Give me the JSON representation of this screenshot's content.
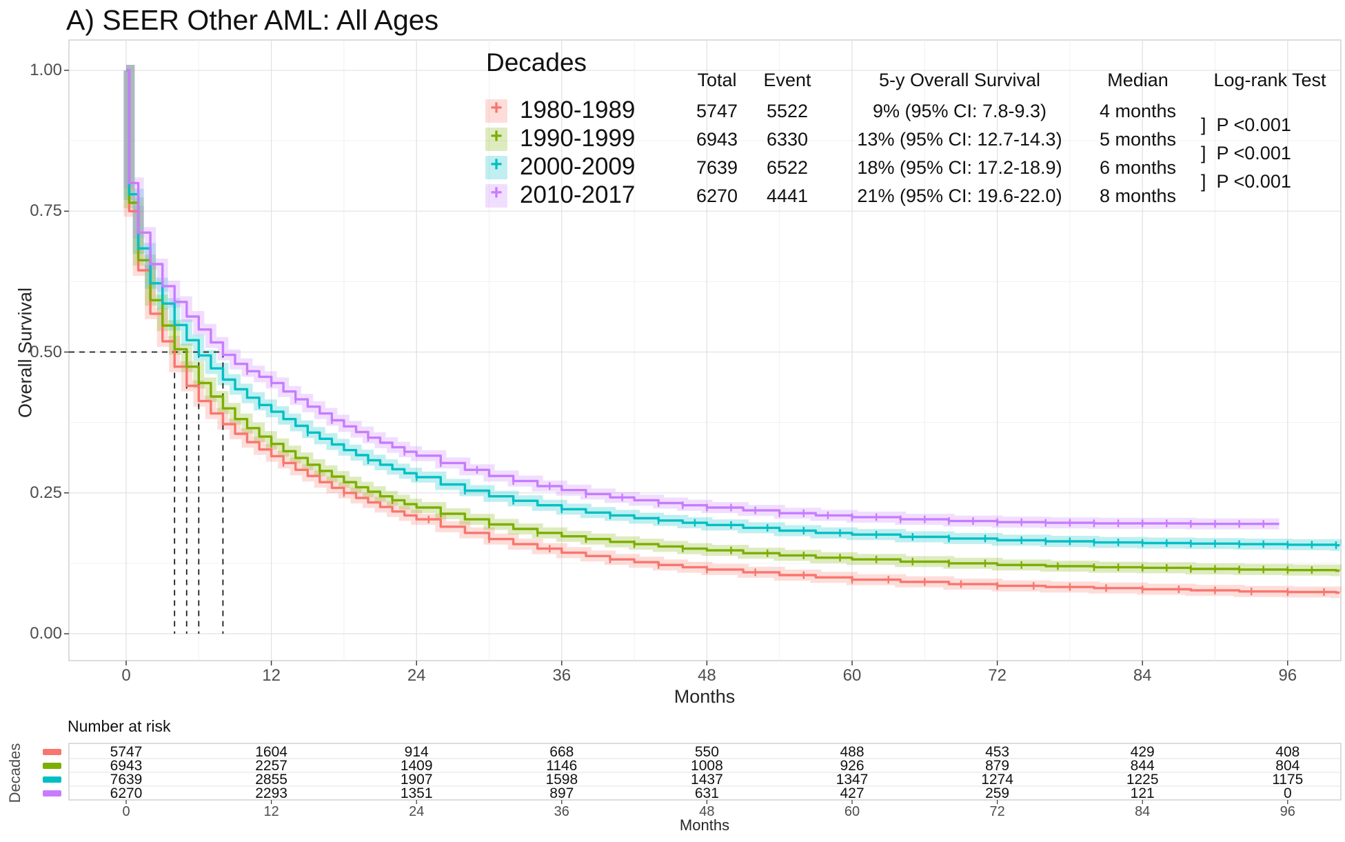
{
  "title": "A) SEER Other AML: All Ages",
  "colors": {
    "red": "#F8766D",
    "green": "#7CAE00",
    "teal": "#00BFC4",
    "purple": "#C77CFF",
    "grid_major": "#e2e2e2",
    "grid_minor": "#f0f0f0",
    "panel_border": "#c9c9c9",
    "tick_text": "#4d4d4d",
    "dashed_guide": "#1a1a1a"
  },
  "legend": {
    "title": "Decades",
    "headers": {
      "total": "Total",
      "event": "Event",
      "os": "5-y Overall Survival",
      "median": "Median",
      "logrank": "Log-rank Test"
    },
    "rows": [
      {
        "label": "1980-1989",
        "color_key": "red",
        "total": "5747",
        "event": "5522",
        "os": "9% (95% CI: 7.8-9.3)",
        "median": "4 months"
      },
      {
        "label": "1990-1999",
        "color_key": "green",
        "total": "6943",
        "event": "6330",
        "os": "13% (95% CI: 12.7-14.3)",
        "median": "5 months"
      },
      {
        "label": "2000-2009",
        "color_key": "teal",
        "total": "7639",
        "event": "6522",
        "os": "18% (95% CI: 17.2-18.9)",
        "median": "6 months"
      },
      {
        "label": "2010-2017",
        "color_key": "purple",
        "total": "6270",
        "event": "4441",
        "os": "21% (95% CI: 19.6-22.0)",
        "median": "8 months"
      }
    ],
    "p_values": [
      "]  P <0.001",
      "]  P <0.001",
      "]  P <0.001"
    ],
    "key_glyph": "+"
  },
  "y_axis": {
    "label": "Overall Survival",
    "ticks": [
      "1.00",
      "0.75",
      "0.50",
      "0.25",
      "0.00"
    ],
    "tick_values": [
      1.0,
      0.75,
      0.5,
      0.25,
      0.0
    ]
  },
  "x_axis": {
    "label": "Months",
    "ticks": [
      "0",
      "12",
      "24",
      "36",
      "48",
      "60",
      "72",
      "84",
      "96"
    ],
    "tick_values": [
      0,
      12,
      24,
      36,
      48,
      60,
      72,
      84,
      96
    ]
  },
  "risk_table": {
    "title": "Number at risk",
    "group_label": "Decades",
    "axis_label": "Months",
    "months": [
      0,
      12,
      24,
      36,
      48,
      60,
      72,
      84,
      96
    ],
    "rows": [
      {
        "name": "1980-1989",
        "color_key": "red",
        "counts": [
          "5747",
          "1604",
          "914",
          "668",
          "550",
          "488",
          "453",
          "429",
          "408"
        ]
      },
      {
        "name": "1990-1999",
        "color_key": "green",
        "counts": [
          "6943",
          "2257",
          "1409",
          "1146",
          "1008",
          "926",
          "879",
          "844",
          "804"
        ]
      },
      {
        "name": "2000-2009",
        "color_key": "teal",
        "counts": [
          "7639",
          "2855",
          "1907",
          "1598",
          "1437",
          "1347",
          "1274",
          "1225",
          "1175"
        ]
      },
      {
        "name": "2010-2017",
        "color_key": "purple",
        "counts": [
          "6270",
          "2293",
          "1351",
          "897",
          "631",
          "427",
          "259",
          "121",
          "0"
        ]
      }
    ]
  },
  "chart_data": {
    "type": "line",
    "subtype": "kaplan-meier-step",
    "title": "A) SEER Other AML: All Ages",
    "xlabel": "Months",
    "ylabel": "Overall Survival",
    "xlim": [
      -4.7,
      102
    ],
    "ylim": [
      0,
      1
    ],
    "x_ticks": [
      0,
      12,
      24,
      36,
      48,
      60,
      72,
      84,
      96
    ],
    "y_ticks": [
      0,
      0.25,
      0.5,
      0.75,
      1.0
    ],
    "grid": true,
    "legend_position": "top-inside",
    "median_guides": {
      "y": 0.5,
      "x_months": [
        4,
        5,
        6,
        8
      ]
    },
    "five_year_os_pct": {
      "1980-1989": 9,
      "1990-1999": 13,
      "2000-2009": 18,
      "2010-2017": 21
    },
    "median_months": {
      "1980-1989": 4,
      "1990-1999": 5,
      "2000-2009": 6,
      "2010-2017": 8
    },
    "series": [
      {
        "name": "1980-1989",
        "color_key": "red",
        "end_month": 100.3,
        "points": [
          [
            0,
            1.0
          ],
          [
            0.25,
            0.75
          ],
          [
            1,
            0.645
          ],
          [
            2,
            0.568
          ],
          [
            3,
            0.519
          ],
          [
            4,
            0.474
          ],
          [
            5,
            0.44
          ],
          [
            6,
            0.413
          ],
          [
            7,
            0.391
          ],
          [
            8,
            0.372
          ],
          [
            9,
            0.355
          ],
          [
            10,
            0.34
          ],
          [
            11,
            0.327
          ],
          [
            12,
            0.315
          ],
          [
            13,
            0.303
          ],
          [
            14,
            0.291
          ],
          [
            15,
            0.28
          ],
          [
            16,
            0.269
          ],
          [
            17,
            0.259
          ],
          [
            18,
            0.25
          ],
          [
            19,
            0.241
          ],
          [
            20,
            0.233
          ],
          [
            21,
            0.225
          ],
          [
            22,
            0.217
          ],
          [
            23,
            0.21
          ],
          [
            24,
            0.203
          ],
          [
            26,
            0.19
          ],
          [
            28,
            0.179
          ],
          [
            30,
            0.168
          ],
          [
            32,
            0.159
          ],
          [
            34,
            0.151
          ],
          [
            36,
            0.144
          ],
          [
            38,
            0.138
          ],
          [
            40,
            0.132
          ],
          [
            42,
            0.127
          ],
          [
            44,
            0.122
          ],
          [
            46,
            0.118
          ],
          [
            48,
            0.114
          ],
          [
            51,
            0.109
          ],
          [
            54,
            0.104
          ],
          [
            57,
            0.1
          ],
          [
            60,
            0.096
          ],
          [
            64,
            0.092
          ],
          [
            68,
            0.088
          ],
          [
            72,
            0.085
          ],
          [
            76,
            0.083
          ],
          [
            80,
            0.081
          ],
          [
            84,
            0.079
          ],
          [
            88,
            0.077
          ],
          [
            92,
            0.075
          ],
          [
            96,
            0.074
          ],
          [
            100,
            0.073
          ]
        ],
        "censor_months": [
          13,
          18,
          25,
          30,
          35,
          40,
          44,
          48,
          52,
          56,
          60,
          63,
          66,
          69,
          72,
          75,
          78,
          81,
          84,
          87,
          90,
          93,
          96,
          99
        ]
      },
      {
        "name": "1990-1999",
        "color_key": "green",
        "end_month": 100.3,
        "points": [
          [
            0,
            1.0
          ],
          [
            0.25,
            0.765
          ],
          [
            1,
            0.663
          ],
          [
            2,
            0.592
          ],
          [
            3,
            0.547
          ],
          [
            4,
            0.505
          ],
          [
            5,
            0.474
          ],
          [
            6,
            0.445
          ],
          [
            7,
            0.421
          ],
          [
            8,
            0.4
          ],
          [
            9,
            0.381
          ],
          [
            10,
            0.365
          ],
          [
            11,
            0.35
          ],
          [
            12,
            0.337
          ],
          [
            13,
            0.324
          ],
          [
            14,
            0.312
          ],
          [
            15,
            0.3
          ],
          [
            16,
            0.289
          ],
          [
            17,
            0.279
          ],
          [
            18,
            0.269
          ],
          [
            19,
            0.26
          ],
          [
            20,
            0.252
          ],
          [
            21,
            0.244
          ],
          [
            22,
            0.237
          ],
          [
            23,
            0.23
          ],
          [
            24,
            0.224
          ],
          [
            26,
            0.213
          ],
          [
            28,
            0.203
          ],
          [
            30,
            0.194
          ],
          [
            32,
            0.186
          ],
          [
            34,
            0.179
          ],
          [
            36,
            0.173
          ],
          [
            38,
            0.168
          ],
          [
            40,
            0.163
          ],
          [
            42,
            0.159
          ],
          [
            44,
            0.155
          ],
          [
            46,
            0.151
          ],
          [
            48,
            0.148
          ],
          [
            51,
            0.143
          ],
          [
            54,
            0.139
          ],
          [
            57,
            0.135
          ],
          [
            60,
            0.132
          ],
          [
            64,
            0.128
          ],
          [
            68,
            0.125
          ],
          [
            72,
            0.122
          ],
          [
            76,
            0.12
          ],
          [
            80,
            0.118
          ],
          [
            84,
            0.117
          ],
          [
            88,
            0.115
          ],
          [
            92,
            0.114
          ],
          [
            96,
            0.113
          ],
          [
            100,
            0.112
          ]
        ],
        "censor_months": [
          12,
          16,
          22,
          26,
          30,
          34,
          38,
          42,
          46,
          50,
          53,
          56,
          59,
          62,
          65,
          68,
          71,
          74,
          77,
          80,
          82,
          84,
          86,
          88,
          90,
          92,
          94,
          96,
          98
        ]
      },
      {
        "name": "2000-2009",
        "color_key": "teal",
        "end_month": 100.3,
        "points": [
          [
            0,
            1.0
          ],
          [
            0.25,
            0.78
          ],
          [
            1,
            0.684
          ],
          [
            2,
            0.622
          ],
          [
            3,
            0.586
          ],
          [
            4,
            0.548
          ],
          [
            5,
            0.521
          ],
          [
            6,
            0.494
          ],
          [
            7,
            0.471
          ],
          [
            8,
            0.451
          ],
          [
            9,
            0.434
          ],
          [
            10,
            0.419
          ],
          [
            11,
            0.406
          ],
          [
            12,
            0.394
          ],
          [
            13,
            0.381
          ],
          [
            14,
            0.369
          ],
          [
            15,
            0.357
          ],
          [
            16,
            0.346
          ],
          [
            17,
            0.336
          ],
          [
            18,
            0.326
          ],
          [
            19,
            0.317
          ],
          [
            20,
            0.308
          ],
          [
            21,
            0.3
          ],
          [
            22,
            0.292
          ],
          [
            23,
            0.285
          ],
          [
            24,
            0.278
          ],
          [
            26,
            0.265
          ],
          [
            28,
            0.254
          ],
          [
            30,
            0.244
          ],
          [
            32,
            0.236
          ],
          [
            34,
            0.228
          ],
          [
            36,
            0.221
          ],
          [
            38,
            0.215
          ],
          [
            40,
            0.21
          ],
          [
            42,
            0.205
          ],
          [
            44,
            0.201
          ],
          [
            46,
            0.197
          ],
          [
            48,
            0.193
          ],
          [
            51,
            0.188
          ],
          [
            54,
            0.183
          ],
          [
            57,
            0.179
          ],
          [
            60,
            0.176
          ],
          [
            64,
            0.172
          ],
          [
            68,
            0.169
          ],
          [
            72,
            0.166
          ],
          [
            76,
            0.164
          ],
          [
            80,
            0.162
          ],
          [
            84,
            0.161
          ],
          [
            88,
            0.16
          ],
          [
            92,
            0.159
          ],
          [
            96,
            0.158
          ],
          [
            100,
            0.157
          ]
        ],
        "censor_months": [
          11,
          15,
          20,
          24,
          28,
          32,
          36,
          40,
          44,
          47,
          50,
          53,
          56,
          59,
          62,
          65,
          68,
          71,
          74,
          76,
          78,
          80,
          82,
          84,
          86,
          88,
          90,
          92,
          94,
          96,
          98,
          100
        ]
      },
      {
        "name": "2010-2017",
        "color_key": "purple",
        "end_month": 95.3,
        "points": [
          [
            0,
            1.0
          ],
          [
            0.25,
            0.8
          ],
          [
            1,
            0.712
          ],
          [
            2,
            0.656
          ],
          [
            3,
            0.617
          ],
          [
            4,
            0.589
          ],
          [
            5,
            0.563
          ],
          [
            6,
            0.54
          ],
          [
            7,
            0.517
          ],
          [
            8,
            0.495
          ],
          [
            9,
            0.479
          ],
          [
            10,
            0.466
          ],
          [
            11,
            0.456
          ],
          [
            12,
            0.445
          ],
          [
            13,
            0.43
          ],
          [
            14,
            0.416
          ],
          [
            15,
            0.403
          ],
          [
            16,
            0.391
          ],
          [
            17,
            0.379
          ],
          [
            18,
            0.368
          ],
          [
            19,
            0.358
          ],
          [
            20,
            0.348
          ],
          [
            21,
            0.339
          ],
          [
            22,
            0.331
          ],
          [
            23,
            0.323
          ],
          [
            24,
            0.316
          ],
          [
            26,
            0.303
          ],
          [
            28,
            0.291
          ],
          [
            30,
            0.28
          ],
          [
            32,
            0.271
          ],
          [
            34,
            0.262
          ],
          [
            36,
            0.255
          ],
          [
            38,
            0.248
          ],
          [
            40,
            0.242
          ],
          [
            42,
            0.237
          ],
          [
            44,
            0.232
          ],
          [
            46,
            0.228
          ],
          [
            48,
            0.224
          ],
          [
            51,
            0.219
          ],
          [
            54,
            0.214
          ],
          [
            57,
            0.21
          ],
          [
            60,
            0.207
          ],
          [
            64,
            0.203
          ],
          [
            68,
            0.2
          ],
          [
            72,
            0.198
          ],
          [
            76,
            0.197
          ],
          [
            80,
            0.196
          ],
          [
            84,
            0.196
          ],
          [
            88,
            0.195
          ],
          [
            92,
            0.195
          ],
          [
            95,
            0.195
          ]
        ],
        "censor_months": [
          10,
          12,
          14,
          17,
          20,
          23,
          26,
          29,
          32,
          35,
          38,
          41,
          44,
          46,
          48,
          50,
          52,
          54,
          56,
          58,
          60,
          62,
          64,
          66,
          68,
          70,
          72,
          74,
          76,
          78,
          80,
          82,
          84,
          86,
          88,
          90,
          92,
          94
        ]
      }
    ]
  }
}
